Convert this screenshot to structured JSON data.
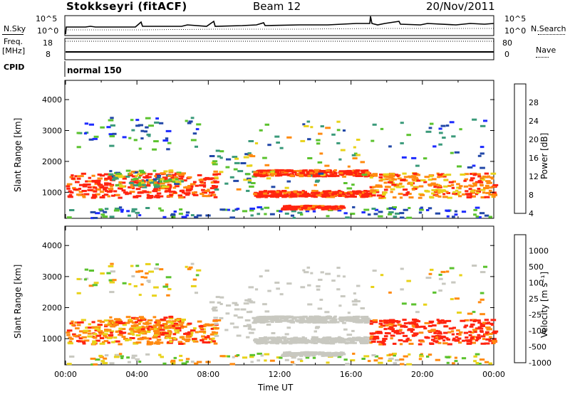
{
  "header": {
    "station": "Stokkseyri (fitACF)",
    "beam": "Beam 12",
    "date": "20/Nov/2011"
  },
  "left_labels": {
    "nsky": "N.Sky",
    "freq": "Freq.",
    "mhz": "[MHz]",
    "cpid": "CPID"
  },
  "right_labels": {
    "nsearch": "N.Search",
    "nave": "Nave"
  },
  "cpid_text": "normal 150",
  "noise_ticks_left": [
    "10^5",
    "10^0"
  ],
  "noise_ticks_right": [
    "10^5",
    "10^0"
  ],
  "freq_ticks": [
    "18",
    "8"
  ],
  "nave_ticks": [
    "80",
    "0"
  ],
  "colors": {
    "blue": "#1e2cff",
    "navy": "#2248a8",
    "teal": "#3a9a7a",
    "green": "#5bc22e",
    "yellow": "#e8d21a",
    "orange": "#ff8a10",
    "red": "#ff2410",
    "grey": "#c8c8c0"
  },
  "chart_data": [
    {
      "type": "heatmap",
      "title": "Power",
      "ylabel": "Slant Range [km]",
      "ylim": [
        180,
        4600
      ],
      "yticks": [
        "1000",
        "2000",
        "3000",
        "4000"
      ],
      "colorbar_label": "Power [dB]",
      "colorbar_ticks": [
        "28",
        "24",
        "20",
        "16",
        "12",
        "8",
        "4"
      ],
      "colorbar_colors": [
        "#ff2410",
        "#ff8a10",
        "#e8d21a",
        "#5bc22e",
        "#3a9a7a",
        "#2248a8",
        "#1e2cff"
      ]
    },
    {
      "type": "heatmap",
      "title": "Velocity",
      "ylabel": "Slant Range [km]",
      "xlabel": "Time UT",
      "ylim": [
        180,
        4600
      ],
      "yticks": [
        "1000",
        "2000",
        "3000",
        "4000"
      ],
      "xticks": [
        "00:00",
        "04:00",
        "08:00",
        "12:00",
        "16:00",
        "20:00",
        "00:00"
      ],
      "colorbar_label": "Velocity [m s⁻¹]",
      "colorbar_ticks": [
        "1000",
        "500",
        "100",
        "25",
        "-25",
        "-100",
        "-500",
        "-1000"
      ],
      "colorbar_colors": [
        "#1e2cff",
        "#2248a8",
        "#3a9a7a",
        "#5bc22e",
        "#c8c8c0",
        "#e8d21a",
        "#ff8a10",
        "#ff2410"
      ]
    }
  ]
}
